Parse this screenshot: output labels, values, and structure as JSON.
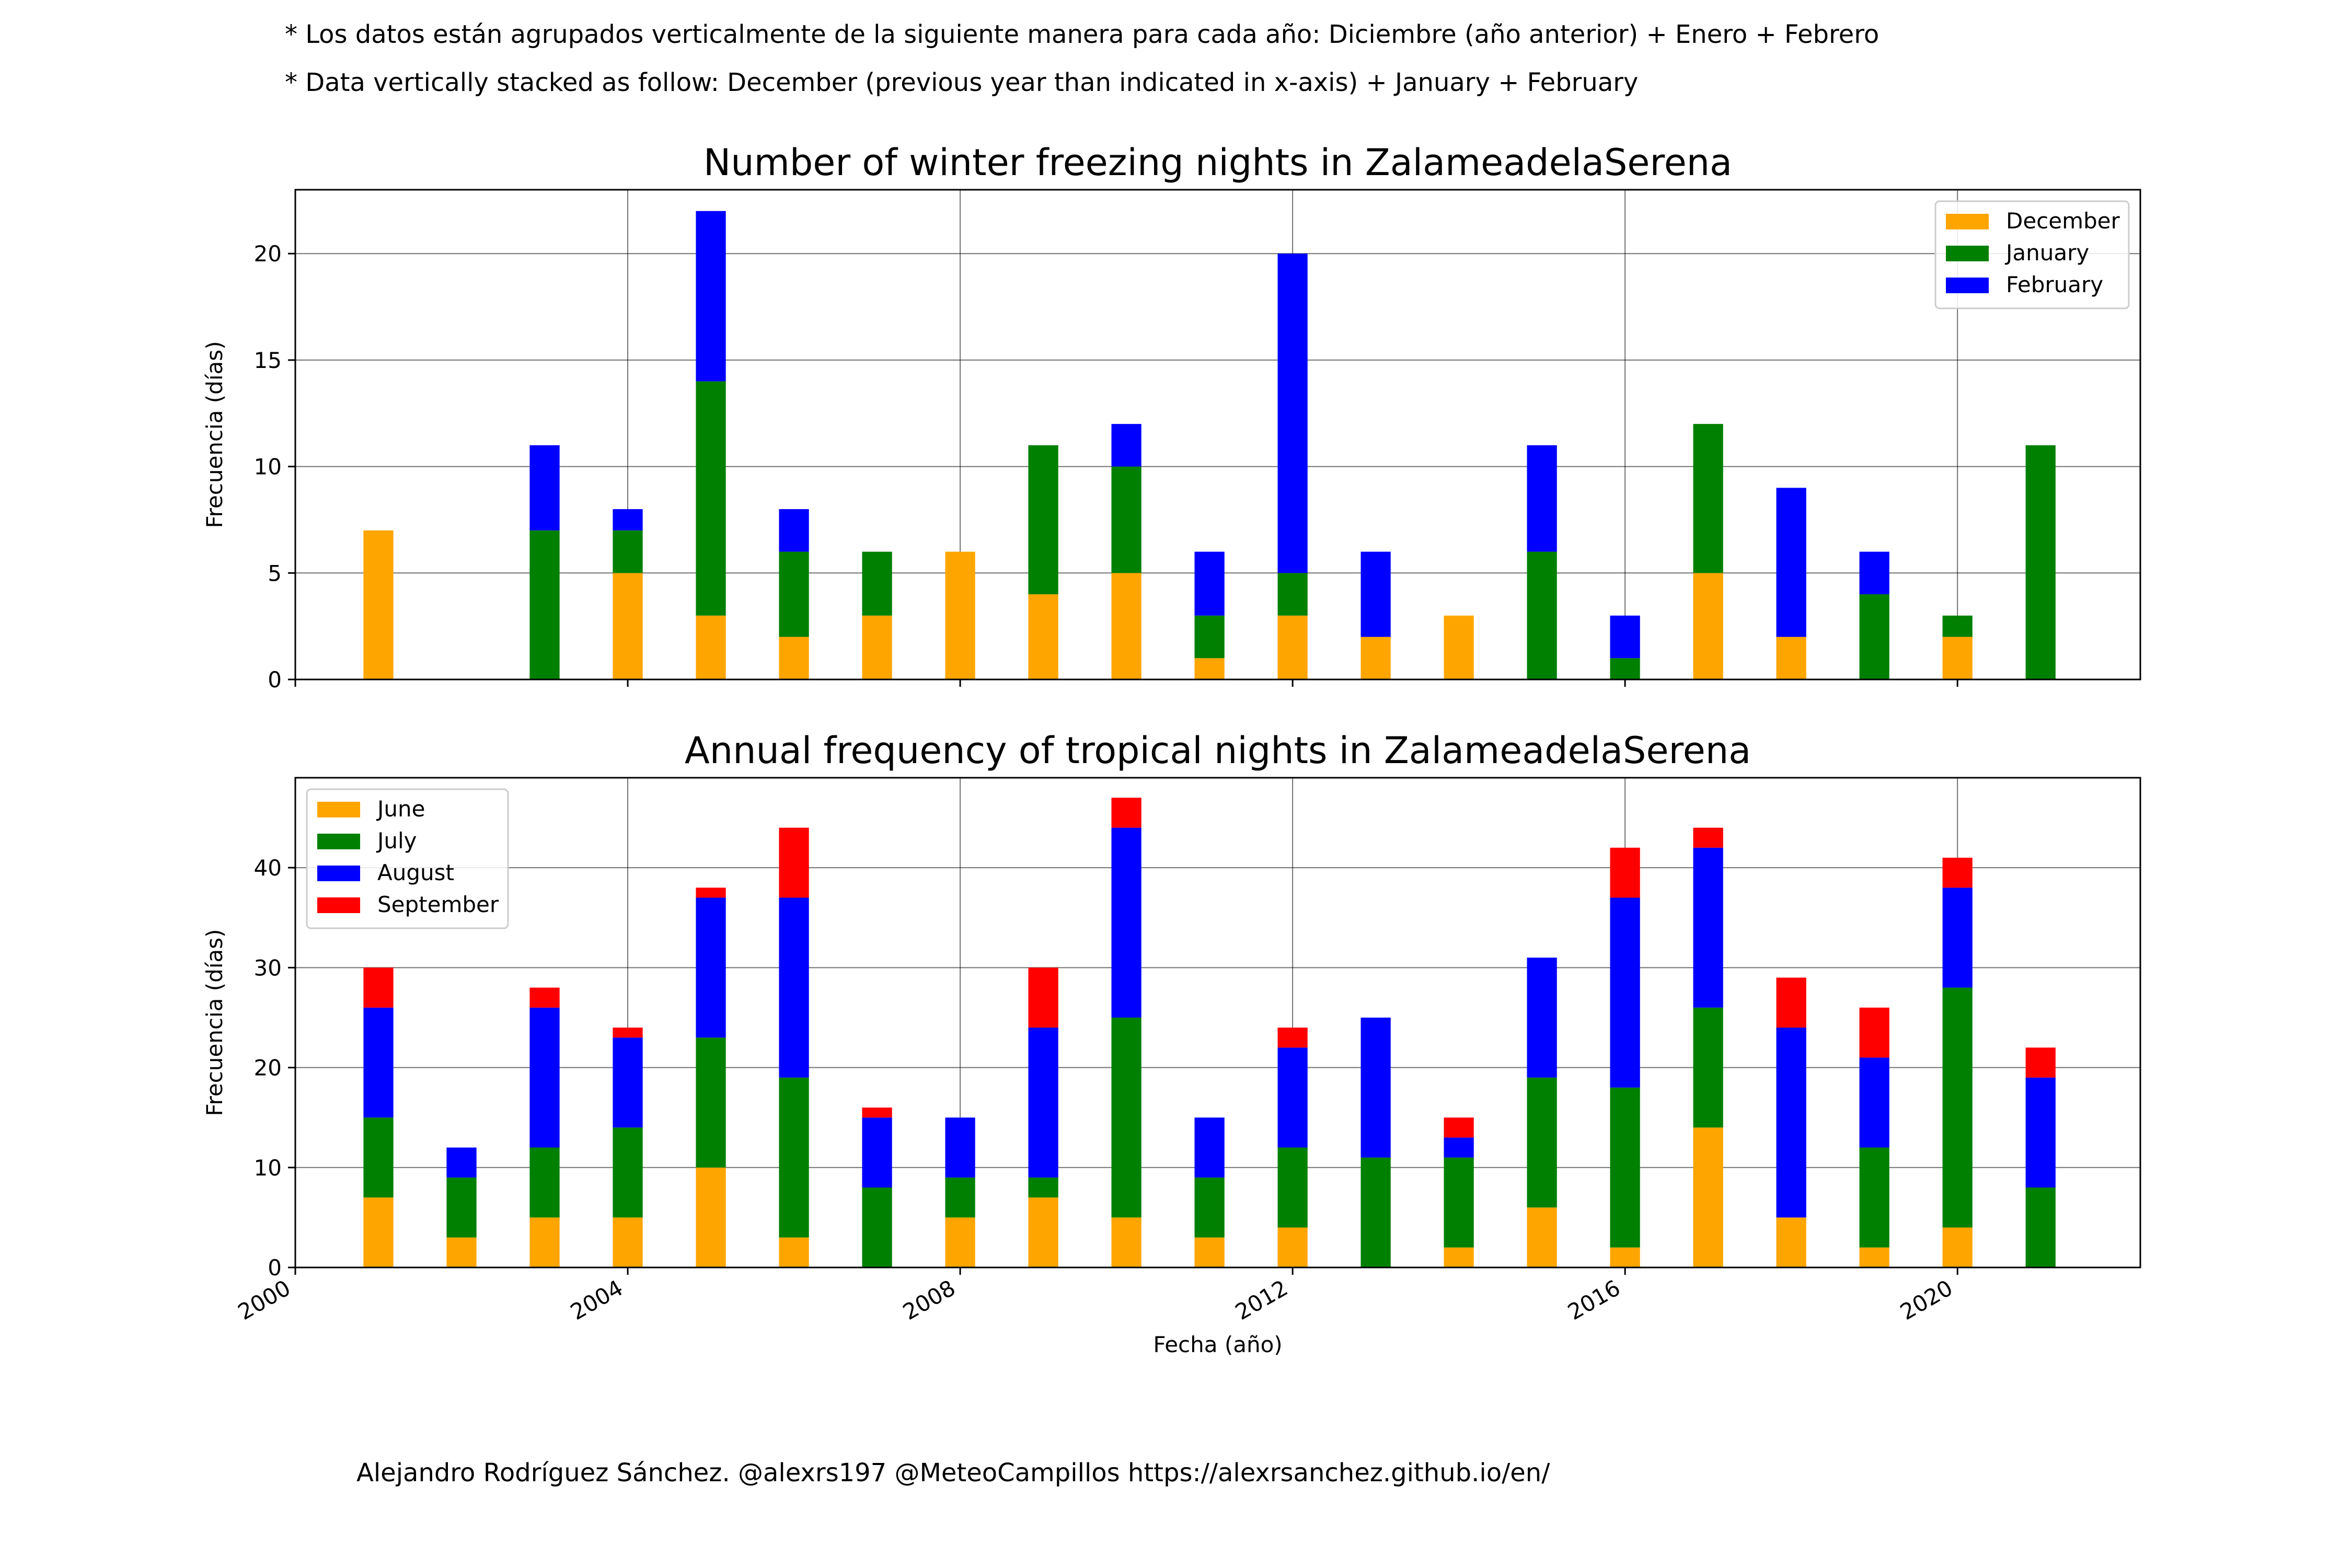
{
  "notes": {
    "spanish": "* Los datos están agrupados verticalmente de la siguiente manera para cada año: Diciembre (año anterior) + Enero  + Febrero",
    "english": "* Data vertically stacked as follow: December (previous year than indicated in x-axis) + January  + February"
  },
  "credit": "Alejandro Rodríguez Sánchez. @alexrs197 @MeteoCampillos   https://alexrsanchez.github.io/en/",
  "chart_data": [
    {
      "type": "bar",
      "stacked": true,
      "title": "Number of winter freezing nights in ZalameadelaSerena",
      "ylabel": "Frecuencia (días)",
      "xlabel": "",
      "ylim": [
        0,
        23
      ],
      "yticks": [
        0,
        5,
        10,
        15,
        20
      ],
      "xlim": [
        2000,
        2022.2
      ],
      "xticks": [
        2000,
        2004,
        2008,
        2012,
        2016,
        2020
      ],
      "grid": true,
      "legend_position": "top-right",
      "categories": [
        2001,
        2002,
        2003,
        2004,
        2005,
        2006,
        2007,
        2008,
        2009,
        2010,
        2011,
        2012,
        2013,
        2014,
        2015,
        2016,
        2017,
        2018,
        2019,
        2020,
        2021
      ],
      "series": [
        {
          "name": "December",
          "color": "#FFA500",
          "values": [
            7,
            0,
            0,
            5,
            3,
            2,
            3,
            6,
            4,
            5,
            1,
            3,
            2,
            3,
            0,
            0,
            5,
            2,
            0,
            2,
            0
          ]
        },
        {
          "name": "January",
          "color": "#008000",
          "values": [
            0,
            0,
            7,
            2,
            11,
            4,
            3,
            0,
            7,
            5,
            2,
            2,
            0,
            0,
            6,
            1,
            7,
            0,
            4,
            1,
            11
          ]
        },
        {
          "name": "February",
          "color": "#0000FF",
          "values": [
            0,
            0,
            4,
            1,
            8,
            2,
            0,
            0,
            0,
            2,
            3,
            15,
            4,
            0,
            5,
            2,
            0,
            7,
            2,
            0,
            0
          ]
        }
      ]
    },
    {
      "type": "bar",
      "stacked": true,
      "title": "Annual frequency of tropical nights in ZalameadelaSerena",
      "ylabel": "Frecuencia (días)",
      "xlabel": "Fecha (año)",
      "ylim": [
        0,
        49
      ],
      "yticks": [
        0,
        10,
        20,
        30,
        40
      ],
      "xlim": [
        2000,
        2022.2
      ],
      "xticks": [
        2000,
        2004,
        2008,
        2012,
        2016,
        2020
      ],
      "grid": true,
      "legend_position": "top-left",
      "categories": [
        2001,
        2002,
        2003,
        2004,
        2005,
        2006,
        2007,
        2008,
        2009,
        2010,
        2011,
        2012,
        2013,
        2014,
        2015,
        2016,
        2017,
        2018,
        2019,
        2020,
        2021
      ],
      "series": [
        {
          "name": "June",
          "color": "#FFA500",
          "values": [
            7,
            3,
            5,
            5,
            10,
            3,
            0,
            5,
            7,
            5,
            3,
            4,
            0,
            2,
            6,
            2,
            14,
            5,
            2,
            4,
            0
          ]
        },
        {
          "name": "July",
          "color": "#008000",
          "values": [
            8,
            6,
            7,
            9,
            13,
            16,
            8,
            4,
            2,
            20,
            6,
            8,
            11,
            9,
            13,
            16,
            12,
            0,
            10,
            24,
            8
          ]
        },
        {
          "name": "August",
          "color": "#0000FF",
          "values": [
            11,
            3,
            14,
            9,
            14,
            18,
            7,
            6,
            15,
            19,
            6,
            10,
            14,
            2,
            12,
            19,
            16,
            19,
            9,
            10,
            11
          ]
        },
        {
          "name": "September",
          "color": "#FF0000",
          "values": [
            4,
            0,
            2,
            1,
            1,
            7,
            1,
            0,
            6,
            3,
            0,
            2,
            0,
            2,
            0,
            5,
            2,
            5,
            5,
            3,
            3
          ]
        }
      ]
    }
  ]
}
